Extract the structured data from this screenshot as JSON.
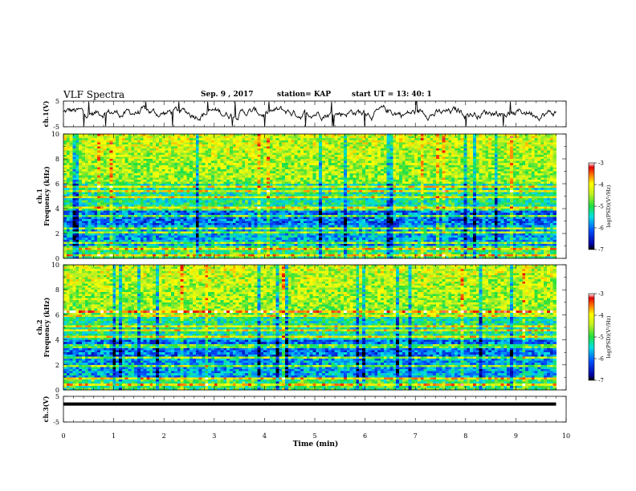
{
  "header": {
    "title": "VLF Spectra",
    "date": "Sep. 9 , 2017",
    "station": "station= KAP",
    "start": "start  UT =  13: 40: 1"
  },
  "chart_data": [
    {
      "type": "line",
      "name": "ch1-waveform",
      "ylabel": "ch.1(V)",
      "xlim": [
        0,
        10
      ],
      "ylim": [
        -5,
        5
      ],
      "yticks": [
        "5",
        "-5"
      ],
      "baseline": 0.5,
      "amplitude": 2.2,
      "x_end": 9.8,
      "color": "#000000"
    },
    {
      "type": "heatmap",
      "name": "ch1-spectrogram",
      "ylabel": "ch.1\nFrequency  (kHz)",
      "xlim": [
        0,
        10
      ],
      "ylim": [
        0,
        10
      ],
      "yticks": [
        "0",
        "2",
        "4",
        "6",
        "8",
        "10"
      ],
      "x_end": 9.8,
      "bands_khz": [
        0.3,
        0.8,
        1.2,
        2.1,
        2.4,
        3.4,
        4.0,
        4.9,
        5.4,
        5.7
      ],
      "colorbar": {
        "min": -7,
        "max": -3,
        "ticks": [
          "-3",
          "-4",
          "-5",
          "-6",
          "-7"
        ],
        "label": "log(PSD)(V²/Hz)"
      }
    },
    {
      "type": "heatmap",
      "name": "ch2-spectrogram",
      "ylabel": "ch.2\nFrequency  (kHz)",
      "xlim": [
        0,
        10
      ],
      "ylim": [
        0,
        10
      ],
      "yticks": [
        "0",
        "2",
        "4",
        "6",
        "8",
        "10"
      ],
      "x_end": 9.8,
      "bands_khz": [
        0.4,
        0.9,
        1.9,
        2.6,
        3.5,
        4.2,
        4.8,
        5.1,
        5.9,
        6.3
      ],
      "colorbar": {
        "min": -7,
        "max": -3,
        "ticks": [
          "-3",
          "-4",
          "-5",
          "-6",
          "-7"
        ],
        "label": "log(PSD)(V²/Hz)"
      }
    },
    {
      "type": "line",
      "name": "ch3-waveform",
      "ylabel": "ch.3(V)",
      "xlim": [
        0,
        10
      ],
      "ylim": [
        -5,
        5
      ],
      "yticks": [
        "5",
        "-5"
      ],
      "constant_value": 2,
      "x_end": 9.8,
      "color": "#000000"
    }
  ],
  "time_axis": {
    "label": "Time  (min)",
    "ticks": [
      "0",
      "1",
      "2",
      "3",
      "4",
      "5",
      "6",
      "7",
      "8",
      "9",
      "10"
    ]
  }
}
